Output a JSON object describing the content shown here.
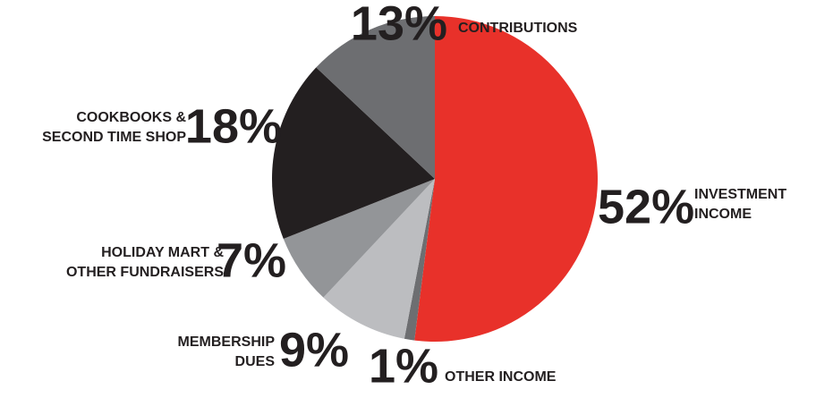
{
  "chart_data": {
    "type": "pie",
    "categories": [
      [
        "INVESTMENT",
        "INCOME"
      ],
      [
        "OTHER INCOME"
      ],
      [
        "MEMBERSHIP",
        "DUES"
      ],
      [
        "HOLIDAY MART &",
        "OTHER FUNDRAISERS"
      ],
      [
        "COOKBOOKS &",
        "SECOND TIME SHOP"
      ],
      [
        "CONTRIBUTIONS"
      ]
    ],
    "values": [
      52,
      1,
      9,
      7,
      18,
      13
    ],
    "value_labels": [
      "52%",
      "1%",
      "9%",
      "7%",
      "18%",
      "13%"
    ],
    "colors": [
      "#e8312a",
      "#6d6e71",
      "#bcbdc0",
      "#939598",
      "#231f20",
      "#6d6e71"
    ]
  }
}
